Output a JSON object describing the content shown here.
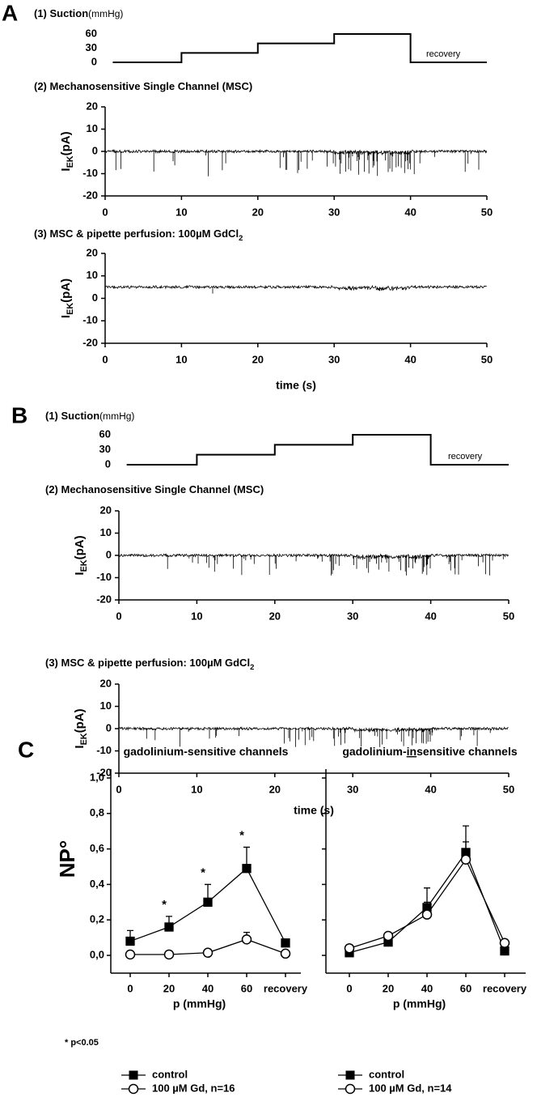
{
  "panel_labels": [
    "A",
    "B",
    "C"
  ],
  "chart_data": [
    {
      "type": "step",
      "title": "(1) Suction",
      "title_unit": "(mmHg)",
      "x": [
        1,
        10,
        10,
        20,
        20,
        30,
        30,
        40,
        40,
        50
      ],
      "values": [
        0,
        0,
        20,
        20,
        40,
        40,
        60,
        60,
        0,
        0
      ],
      "xlim": [
        0,
        50
      ],
      "ylim": [
        0,
        60
      ],
      "yticks": [
        0,
        30,
        60
      ],
      "annotation": "recovery",
      "color": "#000000"
    },
    {
      "type": "trace",
      "title": "(2) Mechanosensitive Single Channel (MSC)",
      "ylabel": [
        "I",
        "EK",
        "(pA)"
      ],
      "xlim": [
        0,
        50
      ],
      "xticks": [
        0,
        10,
        20,
        30,
        40,
        50
      ],
      "ylim": [
        -20,
        20
      ],
      "yticks": [
        -20,
        -10,
        0,
        10,
        20
      ],
      "color": "#000000"
    },
    {
      "type": "trace",
      "title": "(3) MSC & pipette perfusion: 100µM GdCl",
      "title_sub": "2",
      "ylabel": [
        "I",
        "EK",
        "(pA)"
      ],
      "xlim": [
        0,
        50
      ],
      "xticks": [
        0,
        10,
        20,
        30,
        40,
        50
      ],
      "ylim": [
        -20,
        20
      ],
      "yticks": [
        -20,
        -10,
        0,
        10,
        20
      ],
      "xlabel": "time (s)",
      "color": "#000000"
    },
    {
      "type": "step",
      "title": "(1) Suction",
      "title_unit": "(mmHg)",
      "x": [
        1,
        10,
        10,
        20,
        20,
        30,
        30,
        40,
        40,
        50
      ],
      "values": [
        0,
        0,
        20,
        20,
        40,
        40,
        60,
        60,
        0,
        0
      ],
      "xlim": [
        0,
        50
      ],
      "ylim": [
        0,
        60
      ],
      "yticks": [
        0,
        30,
        60
      ],
      "annotation": "recovery",
      "color": "#000000"
    },
    {
      "type": "trace",
      "title": "(2) Mechanosensitive Single Channel (MSC)",
      "ylabel": [
        "I",
        "EK",
        "(pA)"
      ],
      "xlim": [
        0,
        50
      ],
      "xticks": [
        0,
        10,
        20,
        30,
        40,
        50
      ],
      "ylim": [
        -20,
        20
      ],
      "yticks": [
        -20,
        -10,
        0,
        10,
        20
      ],
      "color": "#000000"
    },
    {
      "type": "trace",
      "title": "(3) MSC & pipette perfusion: 100µM GdCl",
      "title_sub": "2",
      "ylabel": [
        "I",
        "EK",
        "(pA)"
      ],
      "xlim": [
        0,
        50
      ],
      "xticks": [
        0,
        10,
        20,
        30,
        40,
        50
      ],
      "ylim": [
        -20,
        20
      ],
      "yticks": [
        -20,
        -10,
        0,
        10,
        20
      ],
      "xlabel": "time (s)",
      "color": "#000000"
    },
    {
      "type": "line",
      "title": [
        "gadolinium-sensitive channels"
      ],
      "ylabel": "NP°",
      "xlabel": "p (mmHg)",
      "categories": [
        "0",
        "20",
        "40",
        "60",
        "recovery"
      ],
      "ylim": [
        -0.1,
        1.05
      ],
      "yticks": [
        {
          "value": 0,
          "label": "0,0"
        },
        {
          "value": 0.2,
          "label": "0,2"
        },
        {
          "value": 0.4,
          "label": "0,4"
        },
        {
          "value": 0.6,
          "label": "0,6"
        },
        {
          "value": 0.8,
          "label": "0,8"
        },
        {
          "value": 1,
          "label": "1,0"
        }
      ],
      "series": [
        {
          "name": "control",
          "color": "#000000",
          "marker": "square",
          "fill": "#000000",
          "values": [
            0.08,
            0.16,
            0.3,
            0.49,
            0.07
          ],
          "errors": [
            0.06,
            0.06,
            0.1,
            0.12,
            0.02
          ]
        },
        {
          "name": "100 µM Gd, n=16",
          "color": "#000000",
          "marker": "circle",
          "fill": "#ffffff",
          "values": [
            0.005,
            0.005,
            0.015,
            0.09,
            0.01
          ],
          "errors": [
            0,
            0,
            0,
            0.04,
            0
          ]
        }
      ],
      "significance": [
        null,
        "*",
        "*",
        "*",
        null
      ],
      "note": "* p<0.05"
    },
    {
      "type": "line",
      "title": [
        "gadolinium-",
        "in",
        "sensitive channels"
      ],
      "xlabel": "p (mmHg)",
      "categories": [
        "0",
        "20",
        "40",
        "60",
        "recovery"
      ],
      "ylim": [
        -0.1,
        1.05
      ],
      "yticks": [
        0,
        0.2,
        0.4,
        0.6,
        0.8,
        1
      ],
      "series": [
        {
          "name": "control",
          "color": "#000000",
          "marker": "square",
          "fill": "#000000",
          "values": [
            0.015,
            0.075,
            0.27,
            0.58,
            0.025
          ],
          "errors": [
            0,
            0,
            0.11,
            0.15,
            0
          ]
        },
        {
          "name": "100 µM Gd, n=14",
          "color": "#000000",
          "marker": "circle",
          "fill": "#ffffff",
          "values": [
            0.04,
            0.11,
            0.23,
            0.54,
            0.07
          ],
          "errors": [
            0,
            0,
            0.07,
            0.1,
            0
          ]
        }
      ]
    }
  ]
}
